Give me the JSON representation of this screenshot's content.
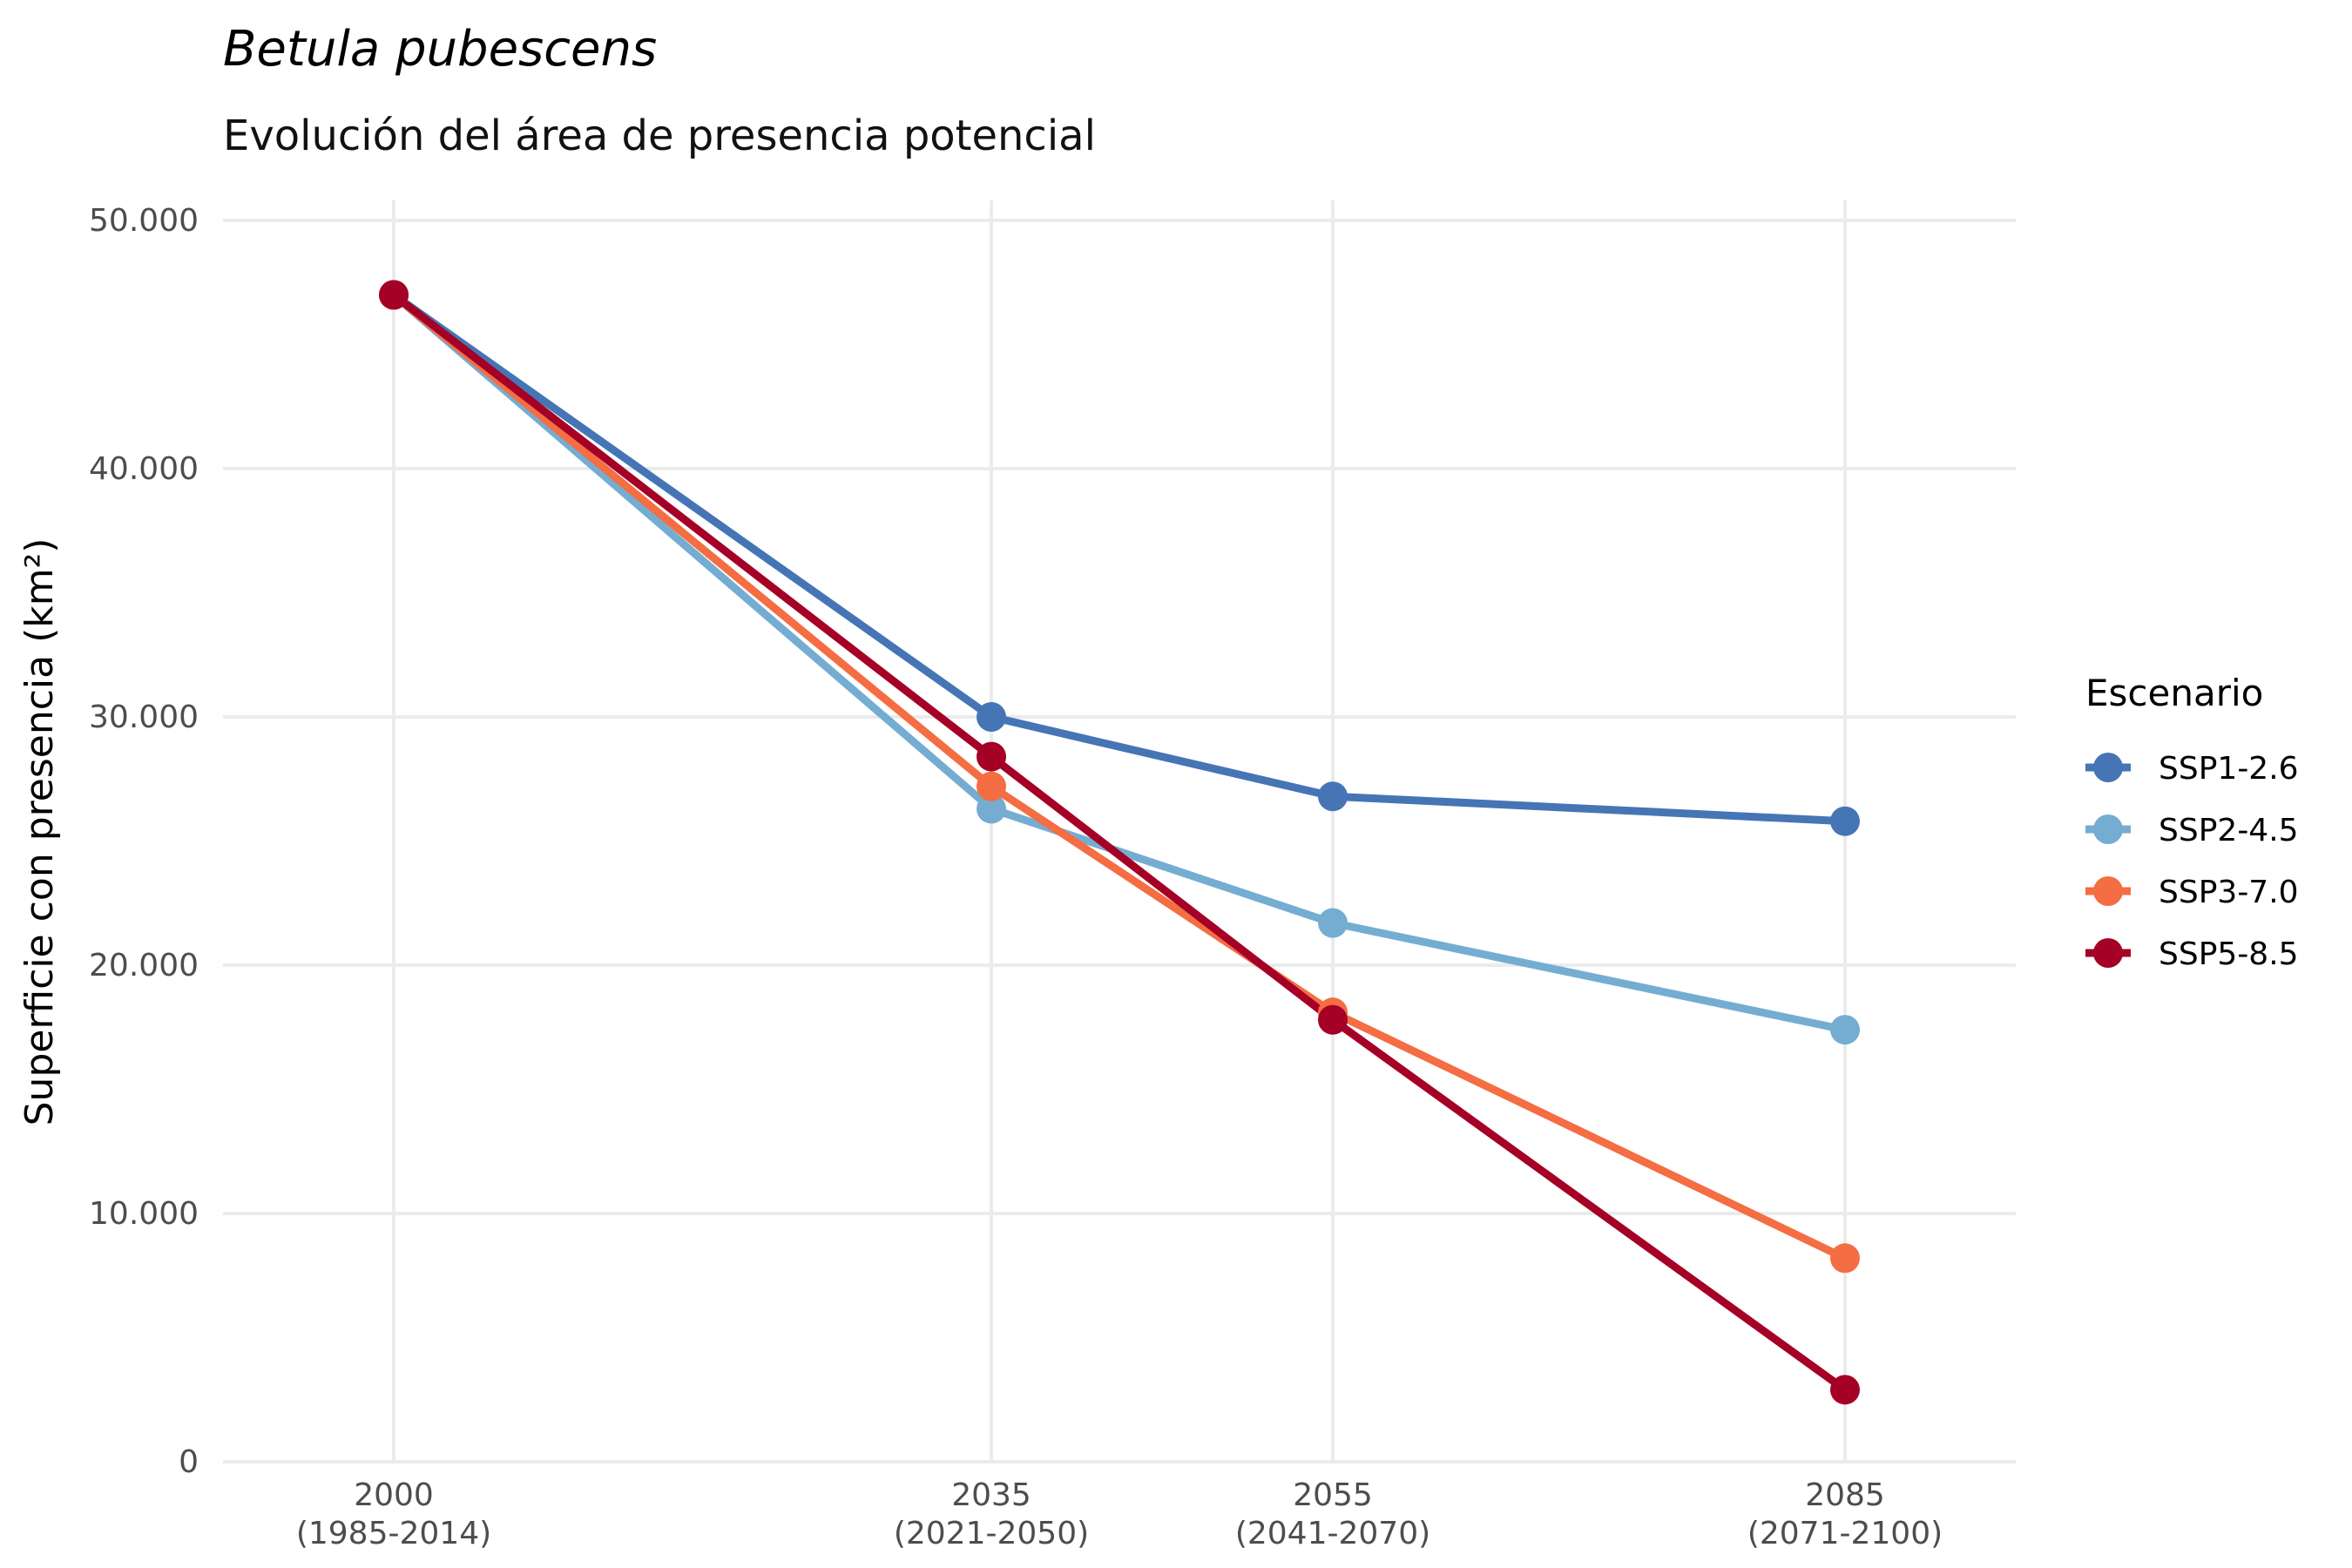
{
  "chart_data": {
    "type": "line",
    "title": "Betula pubescens",
    "subtitle": "Evolución del área de presencia potencial",
    "xlabel": "",
    "ylabel": "Superficie con presencia (km²)",
    "x": [
      2000,
      2035,
      2055,
      2085
    ],
    "categories": [
      [
        "2000",
        "(1985-2014)"
      ],
      [
        "2035",
        "(2021-2050)"
      ],
      [
        "2055",
        "(2041-2070)"
      ],
      [
        "2085",
        "(2071-2100)"
      ]
    ],
    "xlim": [
      1990,
      2095
    ],
    "ylim": [
      0,
      50000
    ],
    "yticks": [
      0,
      10000,
      20000,
      30000,
      40000,
      50000
    ],
    "ytick_labels": [
      "0",
      "10.000",
      "20.000",
      "30.000",
      "40.000",
      "50.000"
    ],
    "grid": true,
    "legend": {
      "title": "Escenario",
      "position": "right"
    },
    "series": [
      {
        "name": "SSP1-2.6",
        "color": "#4575b4",
        "values": [
          47000,
          30000,
          26800,
          25800
        ]
      },
      {
        "name": "SSP2-4.5",
        "color": "#74add1",
        "values": [
          47000,
          26300,
          21700,
          17400
        ]
      },
      {
        "name": "SSP3-7.0",
        "color": "#f46d43",
        "values": [
          47000,
          27200,
          18100,
          8200
        ]
      },
      {
        "name": "SSP5-8.5",
        "color": "#a50026",
        "values": [
          47000,
          28400,
          17800,
          2900
        ]
      }
    ]
  }
}
